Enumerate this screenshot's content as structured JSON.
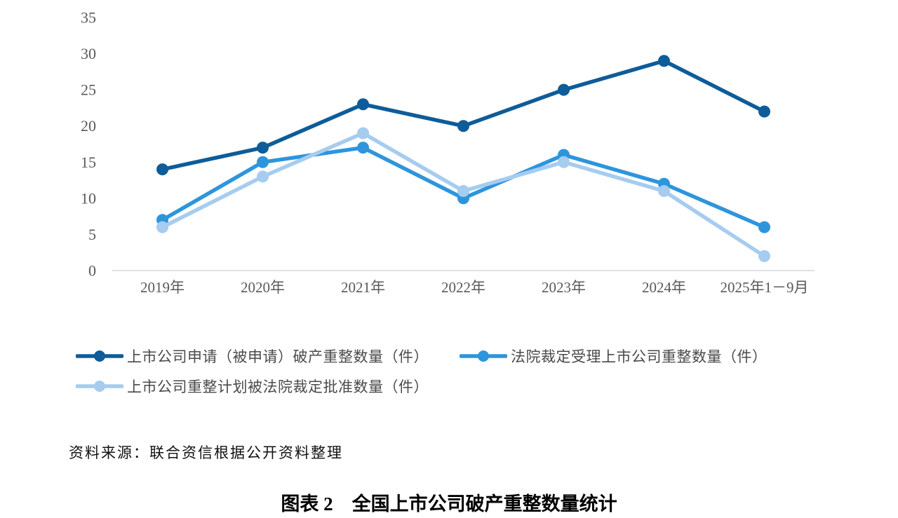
{
  "chart_data": {
    "type": "line",
    "categories": [
      "2019年",
      "2020年",
      "2021年",
      "2022年",
      "2023年",
      "2024年",
      "2025年1－9月"
    ],
    "series": [
      {
        "name": "上市公司申请（被申请）破产重整数量（件）",
        "color": "#0E5C99",
        "values": [
          14,
          17,
          23,
          20,
          25,
          29,
          22
        ]
      },
      {
        "name": "法院裁定受理上市公司重整数量（件）",
        "color": "#2E95DC",
        "values": [
          7,
          15,
          17,
          10,
          16,
          12,
          6
        ]
      },
      {
        "name": "上市公司重整计划被法院裁定批准数量（件）",
        "color": "#A6CCEF",
        "values": [
          6,
          13,
          19,
          11,
          15,
          11,
          2
        ]
      }
    ],
    "title": "",
    "xlabel": "",
    "ylabel": "",
    "ylim": [
      0,
      35
    ],
    "yticks": [
      0,
      5,
      10,
      15,
      20,
      25,
      30,
      35
    ],
    "grid": false,
    "legend_position": "bottom",
    "axis_color": "#D9D9D9",
    "tick_label_color": "#595959"
  },
  "source_note": "资料来源：联合资信根据公开资料整理",
  "caption": {
    "text": "图表 2　全国上市公司破产重整数量统计"
  }
}
